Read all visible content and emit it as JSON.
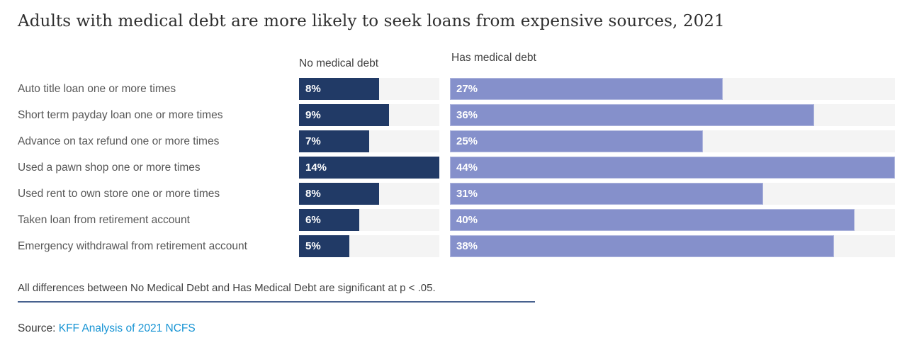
{
  "title": "Adults with medical debt are more likely to seek loans from expensive sources, 2021",
  "note": "All differences between No Medical Debt and Has Medical Debt are significant at p < .05.",
  "source": {
    "prefix": "Source: ",
    "link_text": "KFF Analysis of 2021 NCFS"
  },
  "colors": {
    "no_medical_debt_bar": "#213a66",
    "has_medical_debt_bar": "#8590cb",
    "bar_track": "#f4f4f4",
    "divider_line": "#47618e",
    "source_link": "#1794d4",
    "title_text": "#2f2f2f",
    "label_text": "#575757"
  },
  "chart_data": {
    "type": "bar",
    "orientation": "horizontal",
    "title": "Adults with medical debt are more likely to seek loans from expensive sources, 2021",
    "value_suffix": "%",
    "grid": false,
    "legend_position": "column-headers-top",
    "categories": [
      "Auto title loan one or more times",
      "Short term payday loan one or more times",
      "Advance on tax refund one or more times",
      "Used a pawn shop one or more times",
      "Used rent to own store one or more times",
      "Taken loan from retirement account",
      "Emergency withdrawal from retirement account"
    ],
    "series": [
      {
        "name": "No medical debt",
        "values": [
          8,
          9,
          7,
          14,
          8,
          6,
          5
        ],
        "axis_max": 14,
        "color": "#213a66"
      },
      {
        "name": "Has medical debt",
        "values": [
          27,
          36,
          25,
          44,
          31,
          40,
          38
        ],
        "axis_max": 44,
        "color": "#8590cb"
      }
    ],
    "annotations": [
      "All differences between No Medical Debt and Has Medical Debt are significant at p < .05."
    ]
  }
}
